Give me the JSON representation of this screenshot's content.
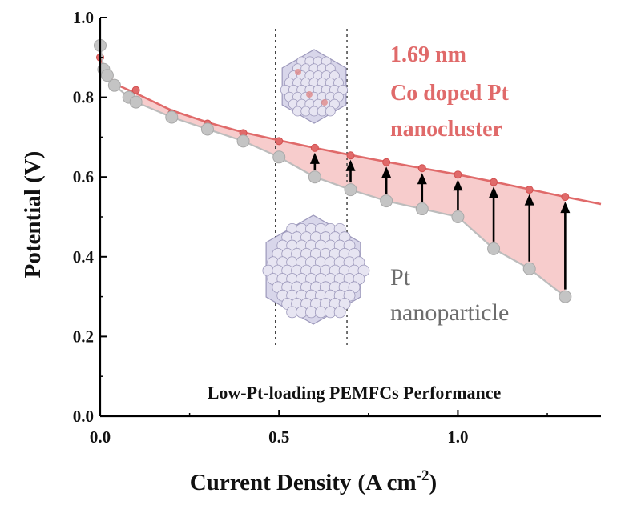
{
  "chart_data": {
    "type": "line",
    "title": "",
    "xlabel_main": "Current Density",
    "xlabel_units_prefix": "(A cm",
    "xlabel_units_exponent": "-2",
    "xlabel_units_suffix": ")",
    "ylabel": "Potential (V)",
    "xlim": [
      0.0,
      1.4
    ],
    "ylim": [
      0.0,
      1.0
    ],
    "xticks": [
      0.0,
      0.5,
      1.0
    ],
    "xtick_labels": [
      "0.0",
      "0.5",
      "1.0"
    ],
    "yticks": [
      0.0,
      0.2,
      0.4,
      0.6,
      0.8,
      1.0
    ],
    "ytick_labels": [
      "0.0",
      "0.2",
      "0.4",
      "0.6",
      "0.8",
      "1.0"
    ],
    "vertical_reference_lines_x": [
      0.49,
      0.69
    ],
    "series": [
      {
        "name": "1.69 nm Co doped Pt nanocluster",
        "color": "#e06a6a",
        "marker_x": [
          0.0,
          0.1,
          0.2,
          0.3,
          0.4,
          0.5,
          0.6,
          0.7,
          0.8,
          0.9,
          1.0,
          1.1,
          1.2,
          1.3
        ],
        "marker_y": [
          0.9,
          0.818,
          0.76,
          0.734,
          0.71,
          0.69,
          0.673,
          0.654,
          0.637,
          0.622,
          0.606,
          0.587,
          0.568,
          0.55
        ],
        "fit_x": [
          0.0,
          0.02,
          0.05,
          0.1,
          0.2,
          0.3,
          0.4,
          0.5,
          0.6,
          0.7,
          0.8,
          0.9,
          1.0,
          1.1,
          1.2,
          1.3,
          1.4
        ],
        "fit_y": [
          0.9,
          0.855,
          0.83,
          0.81,
          0.767,
          0.737,
          0.712,
          0.692,
          0.673,
          0.655,
          0.638,
          0.622,
          0.606,
          0.588,
          0.569,
          0.55,
          0.532
        ]
      },
      {
        "name": "Pt nanoparticle",
        "color": "#b9b9b9",
        "x": [
          0.0,
          0.01,
          0.02,
          0.04,
          0.08,
          0.1,
          0.2,
          0.3,
          0.4,
          0.5,
          0.6,
          0.7,
          0.8,
          0.9,
          1.0,
          1.1,
          1.2,
          1.3
        ],
        "y": [
          0.93,
          0.87,
          0.855,
          0.83,
          0.8,
          0.788,
          0.75,
          0.72,
          0.69,
          0.65,
          0.6,
          0.568,
          0.54,
          0.52,
          0.5,
          0.42,
          0.37,
          0.3
        ]
      }
    ],
    "arrows_x": [
      0.6,
      0.7,
      0.8,
      0.9,
      1.0,
      1.1,
      1.2,
      1.3
    ],
    "annotations": {
      "red_label_lines": [
        "1.69 nm",
        "Co doped Pt",
        "nanocluster"
      ],
      "gray_label_lines": [
        "Pt",
        "nanoparticle"
      ],
      "bottom_note": "Low-Pt-loading PEMFCs Performance"
    }
  },
  "colors": {
    "accent_red": "#e06a6a",
    "fill_red": "#f6c3c3",
    "gray_marker": "#c4c4c4",
    "cluster_fill": "#d8d6ea",
    "cluster_stroke": "#9c98bb"
  }
}
